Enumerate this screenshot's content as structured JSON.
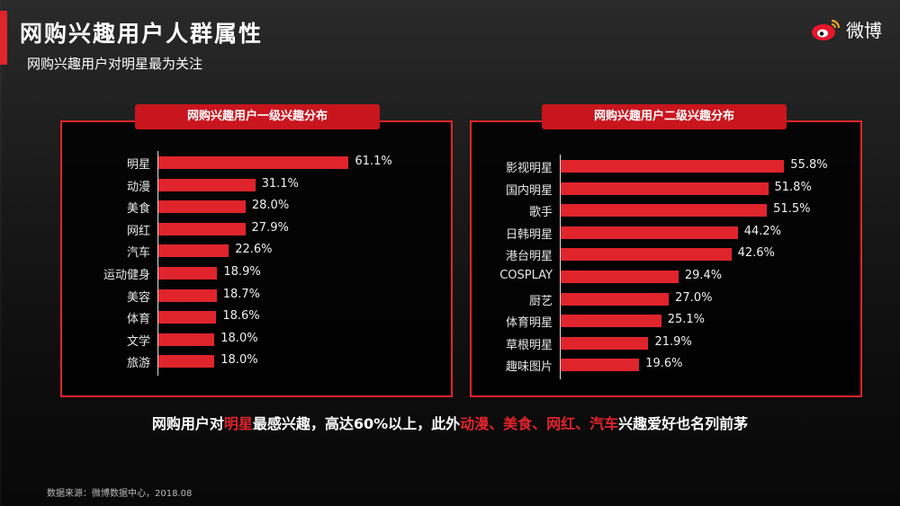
{
  "header": {
    "title": "网购兴趣用户人群属性",
    "subtitle": "网购兴趣用户对明星最为关注",
    "logo_text": "微博"
  },
  "chart_data": [
    {
      "type": "bar",
      "orientation": "horizontal",
      "title": "网购兴趣用户一级兴趣分布",
      "categories": [
        "明星",
        "动漫",
        "美食",
        "网红",
        "汽车",
        "运动健身",
        "美容",
        "体育",
        "文学",
        "旅游"
      ],
      "values": [
        61.1,
        31.1,
        28.0,
        27.9,
        22.6,
        18.9,
        18.7,
        18.6,
        18.0,
        18.0
      ],
      "value_labels": [
        "61.1%",
        "31.1%",
        "28.0%",
        "27.9%",
        "22.6%",
        "18.9%",
        "18.7%",
        "18.6%",
        "18.0%",
        "18.0%"
      ],
      "xlim": [
        0,
        100
      ],
      "grid": false
    },
    {
      "type": "bar",
      "orientation": "horizontal",
      "title": "网购兴趣用户二级兴趣分布",
      "categories": [
        "影视明星",
        "国内明星",
        "歌手",
        "日韩明星",
        "港台明星",
        "COSPLAY",
        "厨艺",
        "体育明星",
        "草根明星",
        "趣味图片"
      ],
      "values": [
        55.8,
        51.8,
        51.5,
        44.2,
        42.6,
        29.4,
        27.0,
        25.1,
        21.9,
        19.6
      ],
      "value_labels": [
        "55.8%",
        "51.8%",
        "51.5%",
        "44.2%",
        "42.6%",
        "29.4%",
        "27.0%",
        "25.1%",
        "21.9%",
        "19.6%"
      ],
      "xlim": [
        0,
        100
      ],
      "grid": false
    }
  ],
  "summary": {
    "p1": "网购用户对",
    "h1": "明星",
    "p2": "最感兴趣，高达60%以上，此外",
    "h2": "动漫、美食、网红、汽车",
    "p3": "兴趣爱好也名列前茅"
  },
  "source": "数据来源：微博数据中心，2018.08",
  "colors": {
    "accent": "#e0242c",
    "panel_title_bg": "#c9151e"
  }
}
